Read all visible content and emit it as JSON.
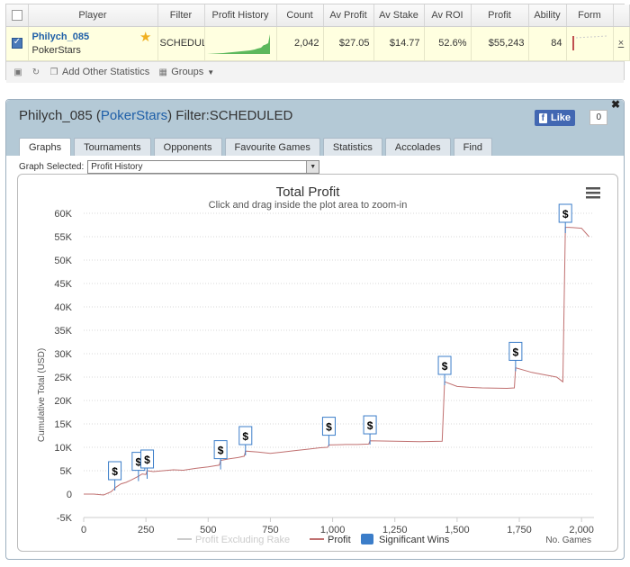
{
  "grid": {
    "columns": [
      "Player",
      "Filter",
      "Profit History",
      "Count",
      "Av Profit",
      "Av Stake",
      "Av ROI",
      "Profit",
      "Ability",
      "Form"
    ],
    "row": {
      "player_name": "Philych_085",
      "site": "PokerStars",
      "filter": "SCHEDULED",
      "count": "2,042",
      "av_profit": "$27.05",
      "av_stake": "$14.77",
      "av_roi": "52.6%",
      "profit": "$55,243",
      "ability": "84"
    },
    "toolbar": {
      "add_stats": "Add Other Statistics",
      "groups": "Groups"
    }
  },
  "panel": {
    "title_name": "Philych_085",
    "title_site": "PokerStars",
    "title_filter": "Filter:SCHEDULED",
    "fb_like": "Like",
    "fb_count": "0",
    "tabs": [
      "Graphs",
      "Tournaments",
      "Opponents",
      "Favourite Games",
      "Statistics",
      "Accolades",
      "Find"
    ],
    "graph_selected_label": "Graph Selected:",
    "graph_selected_value": "Profit History"
  },
  "chart_data": {
    "type": "line",
    "title": "Total Profit",
    "subtitle": "Click and drag inside the plot area to zoom-in",
    "ylabel": "Cumulative Total (USD)",
    "xlabel": "No. Games",
    "ylim": [
      -5000,
      60000
    ],
    "xlim": [
      0,
      2050
    ],
    "y_ticks": [
      "-5K",
      "0",
      "5K",
      "10K",
      "15K",
      "20K",
      "25K",
      "30K",
      "35K",
      "40K",
      "45K",
      "50K",
      "55K",
      "60K"
    ],
    "x_ticks": [
      "0",
      "250",
      "500",
      "750",
      "1,000",
      "1,250",
      "1,500",
      "1,750",
      "2,000"
    ],
    "legend": [
      "Profit Excluding Rake",
      "Profit",
      "Significant Wins"
    ],
    "legend_placement": "bottom-center",
    "grid": true,
    "colors": {
      "profit": "#c07070",
      "excluding_rake": "#cccccc",
      "significant_wins": "#3b7dc9"
    },
    "series": [
      {
        "name": "Profit",
        "x": [
          0,
          40,
          80,
          110,
          130,
          150,
          170,
          190,
          220,
          235,
          250,
          255,
          280,
          320,
          360,
          400,
          450,
          500,
          545,
          550,
          580,
          620,
          645,
          650,
          700,
          750,
          800,
          850,
          900,
          950,
          980,
          985,
          1050,
          1100,
          1145,
          1150,
          1250,
          1350,
          1440,
          1450,
          1500,
          1550,
          1600,
          1700,
          1730,
          1735,
          1800,
          1850,
          1900,
          1925,
          1935,
          1950,
          2000,
          2030
        ],
        "values": [
          0,
          0,
          -200,
          500,
          1500,
          2200,
          2500,
          3000,
          3800,
          4300,
          4200,
          5000,
          4800,
          5000,
          5200,
          5100,
          5500,
          5800,
          6200,
          7200,
          7500,
          7800,
          8100,
          9200,
          9000,
          8700,
          9000,
          9300,
          9600,
          9900,
          10000,
          10500,
          10600,
          10600,
          10700,
          11400,
          11300,
          11200,
          11300,
          24000,
          23000,
          22800,
          22700,
          22600,
          22700,
          27000,
          26000,
          25500,
          25000,
          24000,
          57000,
          57000,
          56800,
          55000
        ]
      }
    ],
    "significant_wins": [
      {
        "x": 125,
        "y": 5000
      },
      {
        "x": 220,
        "y": 7000
      },
      {
        "x": 255,
        "y": 7500
      },
      {
        "x": 550,
        "y": 9500
      },
      {
        "x": 650,
        "y": 12500
      },
      {
        "x": 985,
        "y": 14500
      },
      {
        "x": 1150,
        "y": 14800
      },
      {
        "x": 1450,
        "y": 27500
      },
      {
        "x": 1735,
        "y": 30500
      },
      {
        "x": 1935,
        "y": 60000
      }
    ]
  }
}
